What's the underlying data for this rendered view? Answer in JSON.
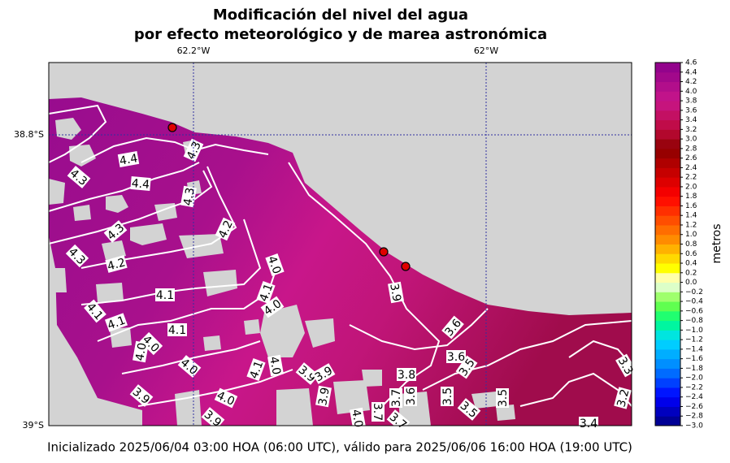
{
  "title_lines": [
    "Modificación del nivel del agua",
    "por efecto meteorológico y de marea astronómica"
  ],
  "map": {
    "lon_labels": [
      "62.2°W",
      "62°W"
    ],
    "lat_labels": [
      "38.8°S",
      "39°S"
    ],
    "contour_labels": [
      "4.4",
      "4.3",
      "4.4",
      "4.3",
      "4.3",
      "4.2",
      "4.3",
      "4.3",
      "4.2",
      "4.0",
      "4.1",
      "4.1",
      "4.0",
      "4.1",
      "4.1",
      "4.1",
      "4.0",
      "4.0",
      "4.0",
      "4.1",
      "4.0",
      "3.9",
      "3.9",
      "4.0",
      "3.9",
      "3.9",
      "3.9",
      "3.8",
      "3.7",
      "3.7",
      "3.6",
      "3.6",
      "3.5",
      "3.5",
      "3.5",
      "3.5",
      "3.4",
      "3.2",
      "3.3",
      "3.9",
      "3.6",
      "3.7",
      "4.0"
    ]
  },
  "colorbar": {
    "label": "metros",
    "clim": [
      -3.0,
      4.6
    ],
    "ticks": [
      {
        "value": 4.6,
        "label": "4.6"
      },
      {
        "value": 4.4,
        "label": "4.4"
      },
      {
        "value": 4.2,
        "label": "4.2"
      },
      {
        "value": 4.0,
        "label": "4.0"
      },
      {
        "value": 3.8,
        "label": "3.8"
      },
      {
        "value": 3.6,
        "label": "3.6"
      },
      {
        "value": 3.4,
        "label": "3.4"
      },
      {
        "value": 3.2,
        "label": "3.2"
      },
      {
        "value": 3.0,
        "label": "3.0"
      },
      {
        "value": 2.8,
        "label": "2.8"
      },
      {
        "value": 2.6,
        "label": "2.6"
      },
      {
        "value": 2.4,
        "label": "2.4"
      },
      {
        "value": 2.2,
        "label": "2.2"
      },
      {
        "value": 2.0,
        "label": "2.0"
      },
      {
        "value": 1.8,
        "label": "1.8"
      },
      {
        "value": 1.6,
        "label": "1.6"
      },
      {
        "value": 1.4,
        "label": "1.4"
      },
      {
        "value": 1.2,
        "label": "1.2"
      },
      {
        "value": 1.0,
        "label": "1.0"
      },
      {
        "value": 0.8,
        "label": "0.8"
      },
      {
        "value": 0.6,
        "label": "0.6"
      },
      {
        "value": 0.4,
        "label": "0.4"
      },
      {
        "value": 0.2,
        "label": "0.2"
      },
      {
        "value": 0.0,
        "label": "0.0"
      },
      {
        "value": -0.2,
        "label": "−0.2"
      },
      {
        "value": -0.4,
        "label": "−0.4"
      },
      {
        "value": -0.6,
        "label": "−0.6"
      },
      {
        "value": -0.8,
        "label": "−0.8"
      },
      {
        "value": -1.0,
        "label": "−1.0"
      },
      {
        "value": -1.2,
        "label": "−1.2"
      },
      {
        "value": -1.4,
        "label": "−1.4"
      },
      {
        "value": -1.6,
        "label": "−1.6"
      },
      {
        "value": -1.8,
        "label": "−1.8"
      },
      {
        "value": -2.0,
        "label": "−2.0"
      },
      {
        "value": -2.2,
        "label": "−2.2"
      },
      {
        "value": -2.4,
        "label": "−2.4"
      },
      {
        "value": -2.6,
        "label": "−2.6"
      },
      {
        "value": -2.8,
        "label": "−2.8"
      },
      {
        "value": -3.0,
        "label": "−3.0"
      }
    ]
  },
  "footer": "Inicializado 2025/06/04 03:00 HOA (06:00 UTC), válido para 2025/06/06 16:00 HOA (19:00 UTC)"
}
